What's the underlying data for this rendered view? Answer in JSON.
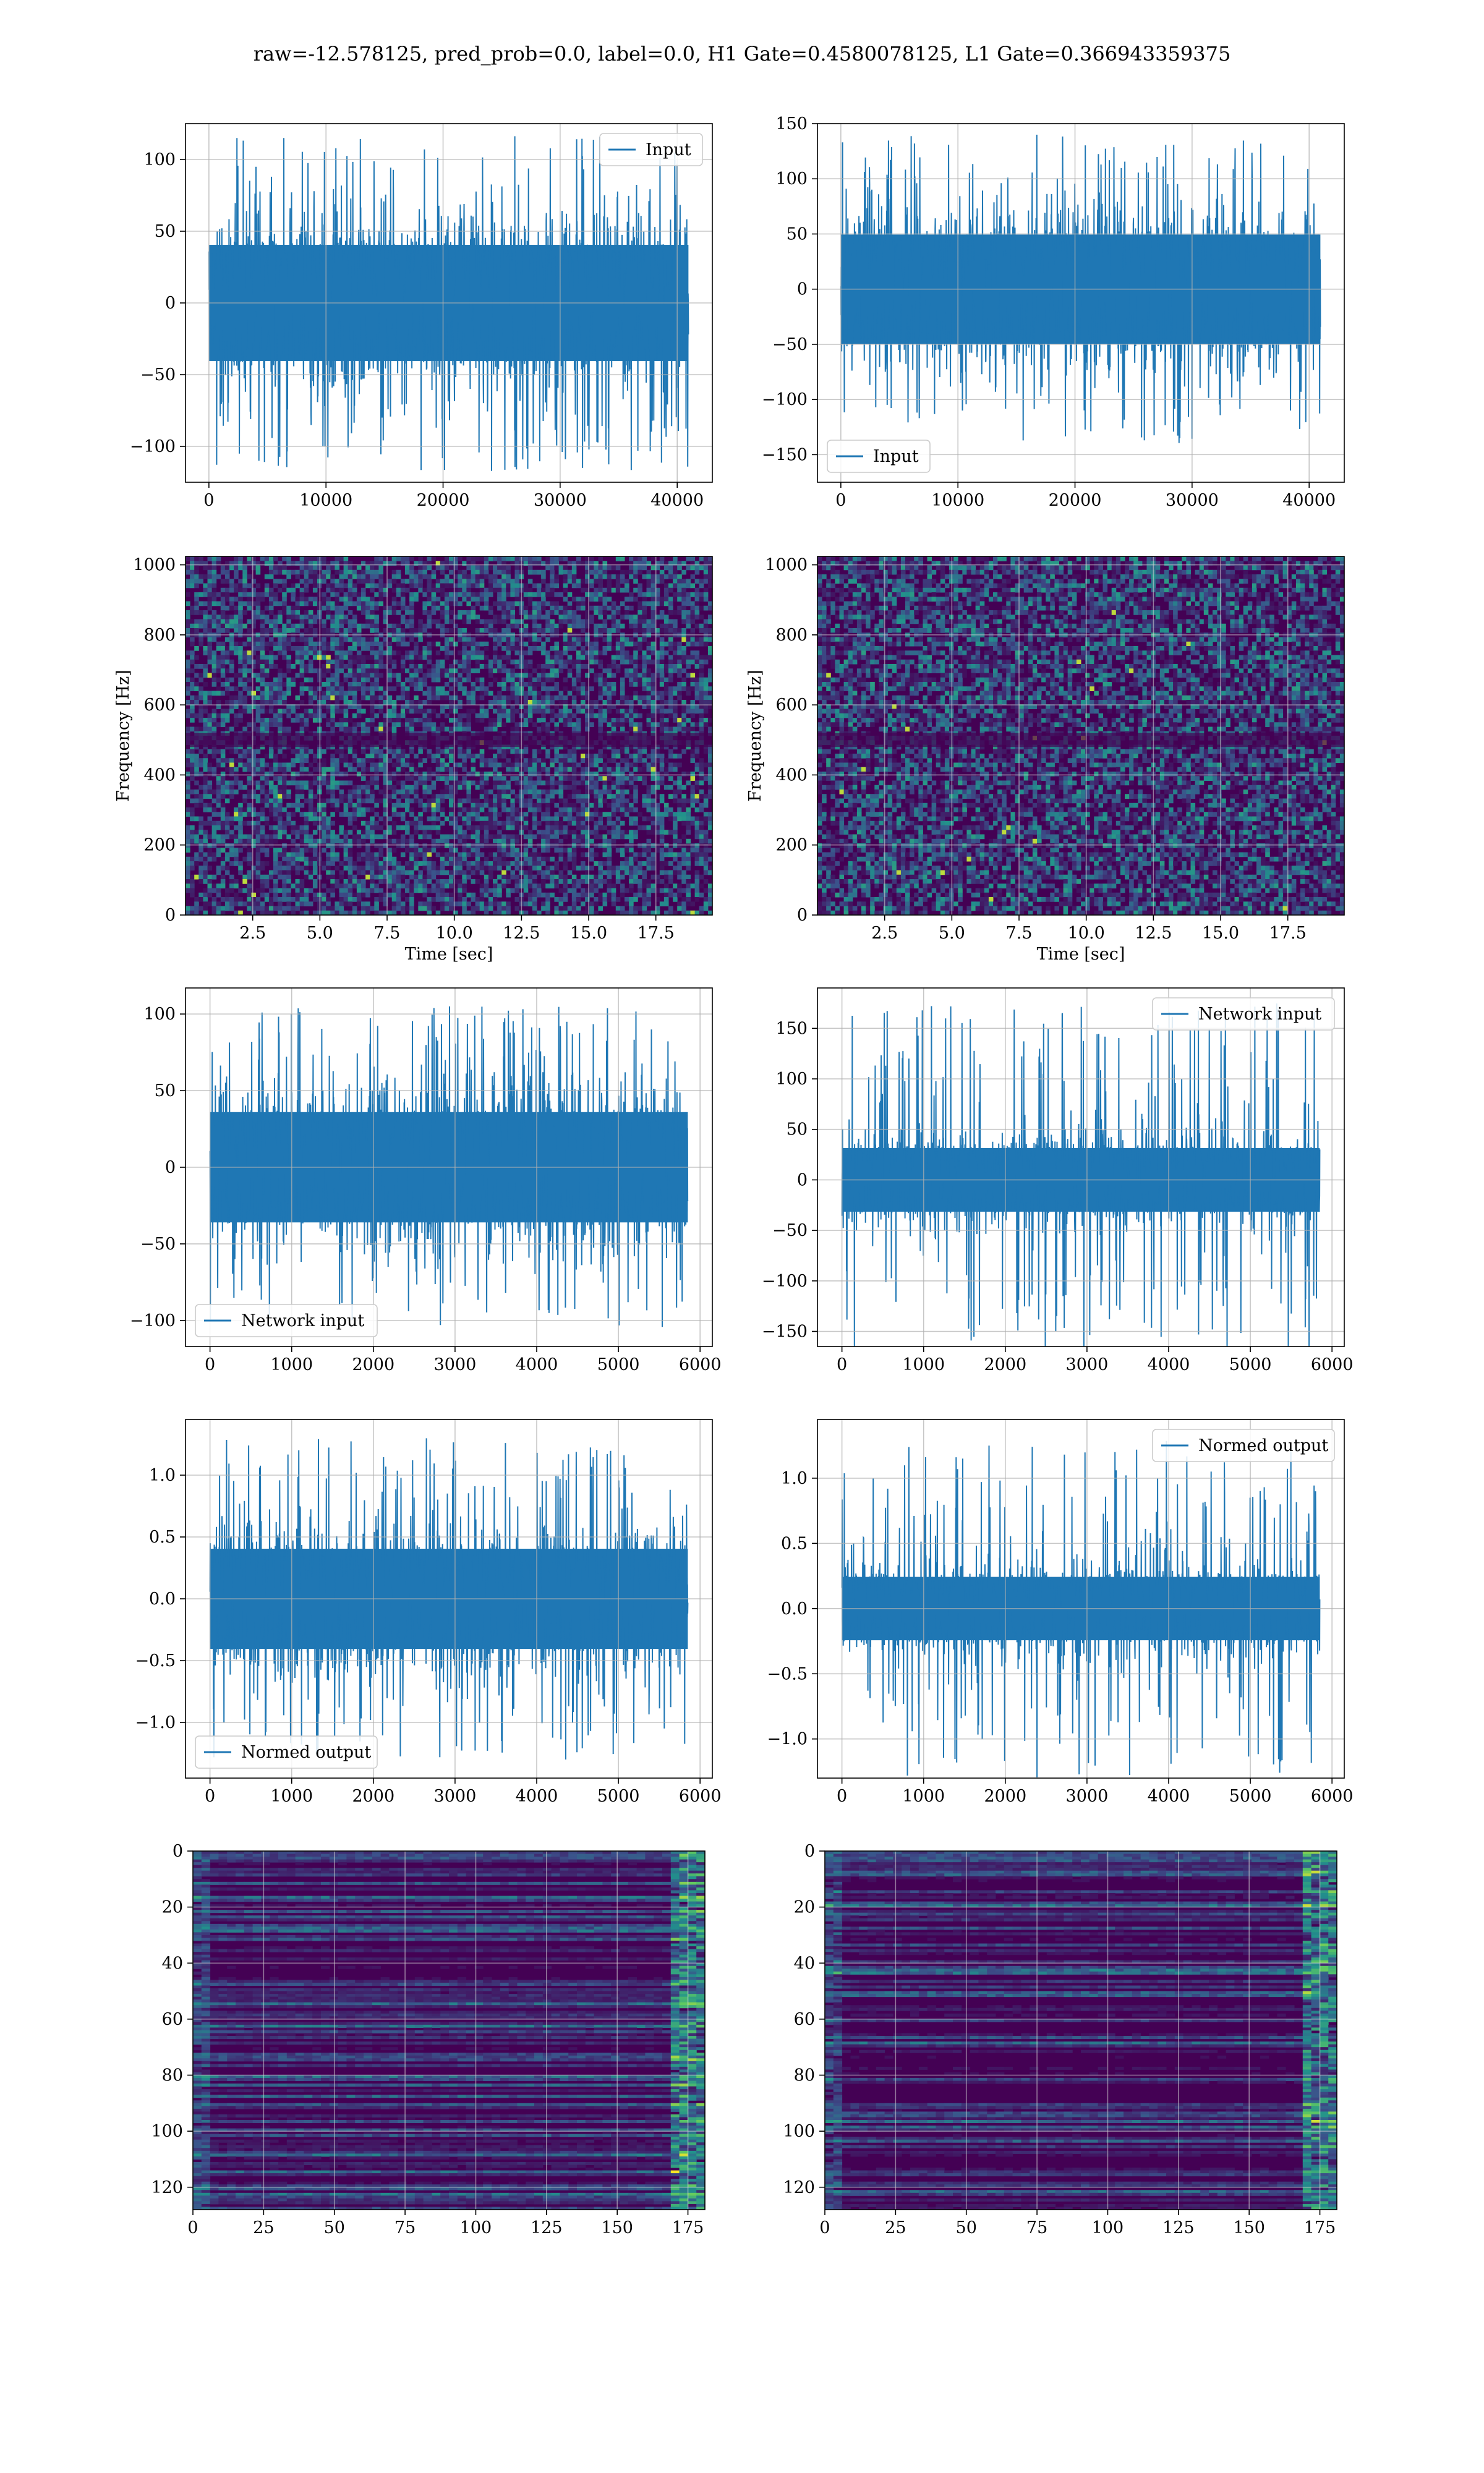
{
  "figure": {
    "title": "raw=-12.578125, pred_prob=0.0, label=0.0, H1 Gate=0.4580078125, L1 Gate=0.366943359375"
  },
  "colors": {
    "line": "#1f77b4",
    "grid": "#b0b0b0",
    "viridis_dark": "#440154",
    "viridis_mid": "#21918c",
    "viridis_light": "#fde725"
  },
  "chart_data": [
    {
      "type": "line",
      "name": "panel-r1-left",
      "legend": "Input",
      "legend_loc": "upper right",
      "xlim": [
        -2000,
        43000
      ],
      "ylim": [
        -125,
        125
      ],
      "xticks": [
        0,
        10000,
        20000,
        30000,
        40000
      ],
      "yticks": [
        -100,
        -50,
        0,
        50,
        100
      ],
      "x_range": [
        0,
        40960
      ],
      "amplitude": 45,
      "spike_max": 118,
      "xlabel": "",
      "ylabel": "",
      "grid": true
    },
    {
      "type": "line",
      "name": "panel-r1-right",
      "legend": "Input",
      "legend_loc": "lower left",
      "xlim": [
        -2000,
        43000
      ],
      "ylim": [
        -175,
        150
      ],
      "xticks": [
        0,
        10000,
        20000,
        30000,
        40000
      ],
      "yticks": [
        -150,
        -100,
        -50,
        0,
        50,
        100,
        150
      ],
      "x_range": [
        0,
        40960
      ],
      "amplitude": 55,
      "spike_max": 140,
      "xlabel": "",
      "ylabel": "",
      "grid": true
    },
    {
      "type": "heatmap",
      "name": "panel-r2-left",
      "xlim": [
        0,
        19.6
      ],
      "ylim": [
        0,
        1024
      ],
      "xticks": [
        2.5,
        5.0,
        7.5,
        10.0,
        12.5,
        15.0,
        17.5
      ],
      "yticks": [
        0,
        200,
        400,
        600,
        800,
        1000
      ],
      "xlabel": "Time [sec]",
      "ylabel": "Frequency [Hz]",
      "colormap": "viridis",
      "grid": true
    },
    {
      "type": "heatmap",
      "name": "panel-r2-right",
      "xlim": [
        0,
        19.6
      ],
      "ylim": [
        0,
        1024
      ],
      "xticks": [
        2.5,
        5.0,
        7.5,
        10.0,
        12.5,
        15.0,
        17.5
      ],
      "yticks": [
        0,
        200,
        400,
        600,
        800,
        1000
      ],
      "xlabel": "Time [sec]",
      "ylabel": "Frequency [Hz]",
      "colormap": "viridis",
      "grid": true
    },
    {
      "type": "line",
      "name": "panel-r3-left",
      "legend": "Network input",
      "legend_loc": "lower left",
      "xlim": [
        -300,
        6150
      ],
      "ylim": [
        -117,
        117
      ],
      "xticks": [
        0,
        1000,
        2000,
        3000,
        4000,
        5000,
        6000
      ],
      "yticks": [
        -100,
        -50,
        0,
        50,
        100
      ],
      "x_range": [
        0,
        5850
      ],
      "amplitude": 40,
      "spike_max": 105,
      "xlabel": "",
      "ylabel": "",
      "grid": true
    },
    {
      "type": "line",
      "name": "panel-r3-right",
      "legend": "Network input",
      "legend_loc": "upper right",
      "xlim": [
        -300,
        6150
      ],
      "ylim": [
        -165,
        190
      ],
      "xticks": [
        0,
        1000,
        2000,
        3000,
        4000,
        5000,
        6000
      ],
      "yticks": [
        -150,
        -100,
        -50,
        0,
        50,
        100,
        150
      ],
      "x_range": [
        0,
        5850
      ],
      "amplitude": 35,
      "spike_max": 175,
      "xlabel": "",
      "ylabel": "",
      "grid": true
    },
    {
      "type": "line",
      "name": "panel-r4-left",
      "legend": "Normed output",
      "legend_loc": "lower left",
      "xlim": [
        -300,
        6150
      ],
      "ylim": [
        -1.45,
        1.45
      ],
      "xticks": [
        0,
        1000,
        2000,
        3000,
        4000,
        5000,
        6000
      ],
      "yticks": [
        -1.0,
        -0.5,
        0.0,
        0.5,
        1.0
      ],
      "x_range": [
        0,
        5850
      ],
      "amplitude": 0.45,
      "spike_max": 1.3,
      "xlabel": "",
      "ylabel": "",
      "grid": true
    },
    {
      "type": "line",
      "name": "panel-r4-right",
      "legend": "Normed output",
      "legend_loc": "upper right",
      "xlim": [
        -300,
        6150
      ],
      "ylim": [
        -1.3,
        1.45
      ],
      "xticks": [
        0,
        1000,
        2000,
        3000,
        4000,
        5000,
        6000
      ],
      "yticks": [
        -1.0,
        -0.5,
        0.0,
        0.5,
        1.0
      ],
      "x_range": [
        0,
        5850
      ],
      "amplitude": 0.27,
      "spike_max": 1.3,
      "xlabel": "",
      "ylabel": "",
      "grid": true
    },
    {
      "type": "heatmap",
      "name": "panel-r5-left",
      "xlim": [
        0,
        181
      ],
      "ylim": [
        128,
        0
      ],
      "xticks": [
        0,
        25,
        50,
        75,
        100,
        125,
        150,
        175
      ],
      "yticks": [
        0,
        20,
        40,
        60,
        80,
        100,
        120
      ],
      "xlabel": "",
      "ylabel": "",
      "colormap": "viridis",
      "grid": true
    },
    {
      "type": "heatmap",
      "name": "panel-r5-right",
      "xlim": [
        0,
        181
      ],
      "ylim": [
        128,
        0
      ],
      "xticks": [
        0,
        25,
        50,
        75,
        100,
        125,
        150,
        175
      ],
      "yticks": [
        0,
        20,
        40,
        60,
        80,
        100,
        120
      ],
      "xlabel": "",
      "ylabel": "",
      "colormap": "viridis",
      "grid": true
    }
  ]
}
